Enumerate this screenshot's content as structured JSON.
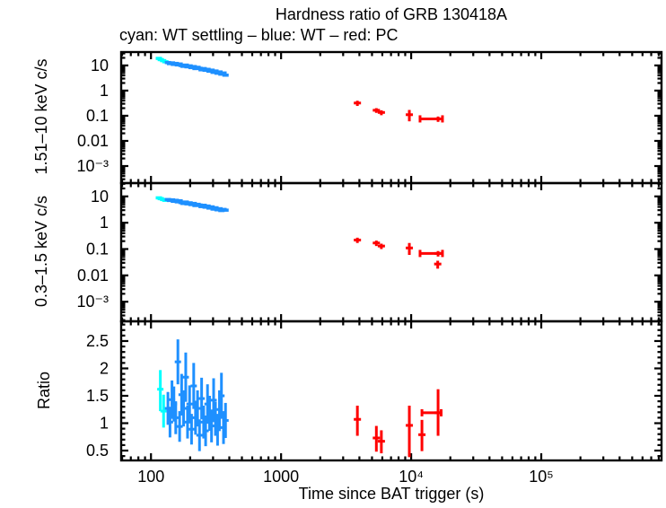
{
  "chart_data": {
    "type": "scatter",
    "title": "Hardness ratio of GRB 130418A",
    "subtitle": "cyan: WT settling – blue: WT – red: PC",
    "legend": [
      {
        "color_name": "cyan",
        "label": "WT settling"
      },
      {
        "color_name": "blue",
        "label": "WT"
      },
      {
        "color_name": "red",
        "label": "PC"
      }
    ],
    "colors": {
      "wt_settling": "#00ffff",
      "wt": "#1e90ff",
      "pc": "#ff0000",
      "axis": "#000000",
      "background": "#ffffff"
    },
    "x_axis": {
      "label": "Time since BAT trigger (s)",
      "scale": "log",
      "range": [
        59,
        840000
      ],
      "ticks": [
        {
          "v": 100,
          "label": "100"
        },
        {
          "v": 1000,
          "label": "1000"
        },
        {
          "v": 10000,
          "label": "10⁴"
        },
        {
          "v": 100000,
          "label": "10⁵"
        }
      ]
    },
    "panels": [
      {
        "name": "hard-band",
        "y_axis": {
          "label": "1.51–10 keV c/s",
          "scale": "log",
          "range": [
            0.00021,
            34
          ],
          "ticks": [
            {
              "v": 10,
              "label": "10"
            },
            {
              "v": 1,
              "label": "1"
            },
            {
              "v": 0.1,
              "label": "0.1"
            },
            {
              "v": 0.01,
              "label": "0.01"
            },
            {
              "v": 0.001,
              "label": "10⁻³"
            }
          ]
        },
        "series": {
          "wt_settling": [
            [
              115,
              19,
              2
            ],
            [
              119,
              17,
              1.8
            ],
            [
              124,
              15.5,
              1.7
            ],
            [
              129,
              14,
              1.5
            ]
          ],
          "wt": [
            [
              135,
              13.0,
              1.3
            ],
            [
              140,
              11.8,
              1.2
            ],
            [
              145,
              12.6,
              1.2
            ],
            [
              150,
              11.0,
              1.1
            ],
            [
              155,
              12.0,
              1.2
            ],
            [
              161,
              10.5,
              1.0
            ],
            [
              166,
              11.4,
              1.1
            ],
            [
              172,
              9.9,
              1.0
            ],
            [
              178,
              9.2,
              0.9
            ],
            [
              185,
              10.3,
              1.0
            ],
            [
              191,
              8.8,
              0.9
            ],
            [
              198,
              9.6,
              0.9
            ],
            [
              205,
              8.2,
              0.8
            ],
            [
              213,
              9.0,
              0.9
            ],
            [
              220,
              7.5,
              0.8
            ],
            [
              228,
              8.4,
              0.8
            ],
            [
              236,
              7.7,
              0.8
            ],
            [
              245,
              6.7,
              0.7
            ],
            [
              254,
              7.5,
              0.7
            ],
            [
              263,
              6.4,
              0.7
            ],
            [
              272,
              7.0,
              0.7
            ],
            [
              282,
              5.9,
              0.6
            ],
            [
              292,
              6.5,
              0.6
            ],
            [
              303,
              5.3,
              0.6
            ],
            [
              313,
              6.0,
              0.6
            ],
            [
              325,
              4.9,
              0.5
            ],
            [
              336,
              5.5,
              0.5
            ],
            [
              348,
              4.5,
              0.5
            ],
            [
              361,
              5.0,
              0.5
            ],
            [
              374,
              4.1,
              0.5
            ]
          ],
          "pc": [
            [
              3860,
              0.32,
              0.075
            ],
            [
              5400,
              0.165,
              0.035
            ],
            [
              5900,
              0.135,
              0.03
            ],
            [
              9680,
              0.11,
              0.05,
              0.06
            ],
            [
              16100,
              0.075,
              0.018,
              0.018,
              11700,
              17400
            ]
          ]
        }
      },
      {
        "name": "soft-band",
        "y_axis": {
          "label": "0.3–1.5 keV c/s",
          "scale": "log",
          "range": [
            0.00018,
            32
          ],
          "ticks": [
            {
              "v": 10,
              "label": "10"
            },
            {
              "v": 1,
              "label": "1"
            },
            {
              "v": 0.1,
              "label": "0.1"
            },
            {
              "v": 0.01,
              "label": "0.01"
            },
            {
              "v": 0.001,
              "label": "10⁻³"
            }
          ]
        },
        "series": {
          "wt_settling": [
            [
              115,
              8.8,
              0.9
            ],
            [
              119,
              8.2,
              0.8
            ],
            [
              124,
              7.6,
              0.8
            ],
            [
              129,
              7.1,
              0.7
            ]
          ],
          "wt": [
            [
              135,
              7.6,
              0.8
            ],
            [
              140,
              7.0,
              0.7
            ],
            [
              145,
              7.4,
              0.7
            ],
            [
              150,
              6.5,
              0.7
            ],
            [
              155,
              7.1,
              0.7
            ],
            [
              161,
              6.2,
              0.6
            ],
            [
              166,
              6.8,
              0.7
            ],
            [
              172,
              5.8,
              0.6
            ],
            [
              178,
              5.4,
              0.6
            ],
            [
              185,
              6.1,
              0.6
            ],
            [
              191,
              5.2,
              0.5
            ],
            [
              198,
              5.7,
              0.6
            ],
            [
              205,
              4.9,
              0.5
            ],
            [
              213,
              5.4,
              0.5
            ],
            [
              220,
              4.5,
              0.5
            ],
            [
              228,
              5.0,
              0.5
            ],
            [
              236,
              4.7,
              0.5
            ],
            [
              245,
              4.1,
              0.4
            ],
            [
              254,
              4.6,
              0.5
            ],
            [
              263,
              3.9,
              0.4
            ],
            [
              272,
              4.3,
              0.4
            ],
            [
              282,
              3.6,
              0.4
            ],
            [
              292,
              4.0,
              0.4
            ],
            [
              303,
              3.3,
              0.4
            ],
            [
              313,
              3.7,
              0.4
            ],
            [
              325,
              3.1,
              0.3
            ],
            [
              336,
              3.4,
              0.3
            ],
            [
              348,
              2.9,
              0.3
            ],
            [
              361,
              3.2,
              0.3
            ],
            [
              374,
              3.0,
              0.3
            ]
          ],
          "pc": [
            [
              3860,
              0.22,
              0.05
            ],
            [
              5400,
              0.17,
              0.04
            ],
            [
              5900,
              0.13,
              0.03
            ],
            [
              9680,
              0.11,
              0.05,
              0.06
            ],
            [
              16100,
              0.068,
              0.016,
              0.016,
              11700,
              17400
            ],
            [
              16000,
              0.027,
              0.009
            ]
          ]
        }
      },
      {
        "name": "ratio",
        "y_axis": {
          "label": "Ratio",
          "scale": "linear",
          "range": [
            0.32,
            2.86
          ],
          "ticks": [
            {
              "v": 2.5,
              "label": "2.5"
            },
            {
              "v": 2,
              "label": "2"
            },
            {
              "v": 1.5,
              "label": "1.5"
            },
            {
              "v": 1,
              "label": "1"
            },
            {
              "v": 0.5,
              "label": "0.5"
            }
          ]
        },
        "series": {
          "wt_settling": [
            [
              118,
              1.62,
              0.4,
              0.35
            ],
            [
              125,
              1.22,
              0.3,
              0.3
            ]
          ],
          "wt": [
            [
              135,
              1.27,
              0.3
            ],
            [
              140,
              1.02,
              0.28
            ],
            [
              145,
              1.43,
              0.35
            ],
            [
              150,
              1.35,
              0.32
            ],
            [
              155,
              1.1,
              0.3
            ],
            [
              161,
              2.12,
              0.41
            ],
            [
              166,
              0.94,
              0.28
            ],
            [
              172,
              1.52,
              0.38
            ],
            [
              178,
              1.27,
              0.33
            ],
            [
              185,
              1.84,
              0.45
            ],
            [
              191,
              1.02,
              0.3
            ],
            [
              198,
              1.35,
              0.34
            ],
            [
              205,
              0.89,
              0.28
            ],
            [
              213,
              1.68,
              0.42
            ],
            [
              220,
              1.1,
              0.31
            ],
            [
              228,
              1.27,
              0.33
            ],
            [
              236,
              0.78,
              0.29
            ],
            [
              245,
              1.45,
              0.38
            ],
            [
              254,
              1.02,
              0.3
            ],
            [
              263,
              0.86,
              0.28
            ],
            [
              272,
              1.35,
              0.36
            ],
            [
              282,
              1.18,
              0.32
            ],
            [
              292,
              0.95,
              0.3
            ],
            [
              303,
              1.42,
              0.4
            ],
            [
              313,
              1.08,
              0.31
            ],
            [
              325,
              0.88,
              0.29
            ],
            [
              336,
              1.25,
              0.35
            ],
            [
              348,
              1.5,
              0.42
            ],
            [
              361,
              0.92,
              0.3
            ],
            [
              374,
              1.05,
              0.32
            ]
          ],
          "pc": [
            [
              3860,
              1.07,
              0.3,
              0.25
            ],
            [
              5400,
              0.73,
              0.25,
              0.22
            ],
            [
              5900,
              0.67,
              0.22,
              0.2
            ],
            [
              9680,
              0.96,
              0.58,
              0.36
            ],
            [
              12100,
              0.79,
              0.3,
              0.27
            ],
            [
              16100,
              1.19,
              0.42,
              0.43,
              12100,
              17000
            ]
          ]
        }
      }
    ]
  }
}
